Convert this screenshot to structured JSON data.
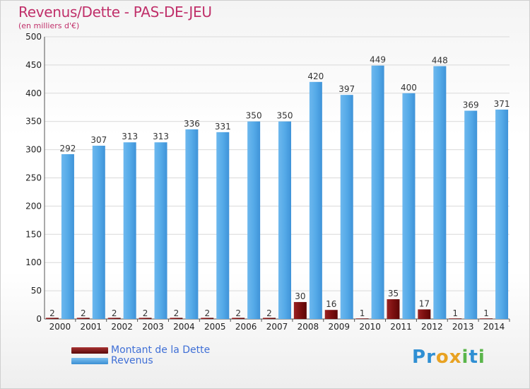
{
  "header": {
    "title": "Revenus/Dette - PAS-DE-JEU",
    "subtitle": "(en milliers d'€)"
  },
  "legend": [
    {
      "label": "Montant de la Dette",
      "color": "#7a0f0f"
    },
    {
      "label": "Revenus",
      "color": "#4ea3e4"
    }
  ],
  "logo": {
    "text": "Proxiti",
    "letters": [
      {
        "ch": "P",
        "color": "#2f8fd3"
      },
      {
        "ch": "r",
        "color": "#2f8fd3"
      },
      {
        "ch": "o",
        "color": "#e8a222"
      },
      {
        "ch": "x",
        "color": "#e8a222"
      },
      {
        "ch": "i",
        "color": "#5ab54a"
      },
      {
        "ch": "t",
        "color": "#2f8fd3"
      },
      {
        "ch": "i",
        "color": "#5ab54a"
      }
    ]
  },
  "chart_data": {
    "type": "bar",
    "categories": [
      "2000",
      "2001",
      "2002",
      "2003",
      "2004",
      "2005",
      "2006",
      "2007",
      "2008",
      "2009",
      "2010",
      "2011",
      "2012",
      "2013",
      "2014"
    ],
    "series": [
      {
        "name": "Montant de la Dette",
        "color": "#7a0f0f",
        "values": [
          2,
          2,
          2,
          2,
          2,
          2,
          2,
          2,
          30,
          16,
          1,
          35,
          17,
          1,
          1
        ]
      },
      {
        "name": "Revenus",
        "color": "#4ea3e4",
        "values": [
          292,
          307,
          313,
          313,
          336,
          331,
          350,
          350,
          420,
          397,
          449,
          400,
          448,
          369,
          371
        ]
      }
    ],
    "ylim": [
      0,
      500
    ],
    "yticks": [
      0,
      50,
      100,
      150,
      200,
      250,
      300,
      350,
      400,
      450,
      500
    ],
    "grid": true
  }
}
